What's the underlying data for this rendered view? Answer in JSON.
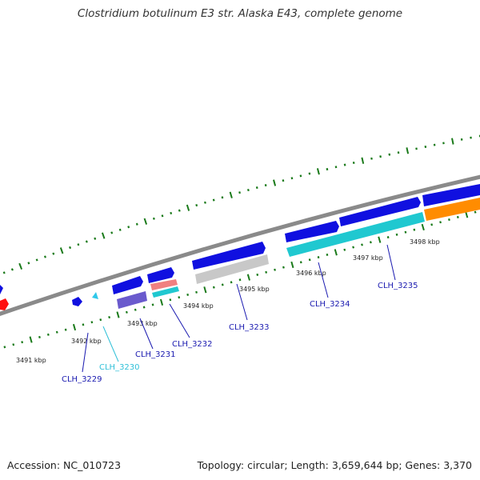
{
  "title": "Clostridium botulinum E3 str. Alaska E43, complete genome",
  "footer": {
    "accession": "Accession: NC_010723",
    "stats": "Topology: circular; Length: 3,659,644 bp; Genes: 3,370"
  },
  "colors": {
    "forward_cds": "#1010e0",
    "reverse_cds_cyan": "#20c8d0",
    "cds_purple": "#6a5acd",
    "cds_grey": "#c0c0c0",
    "cds_orange": "#ff8c00",
    "cds_pink": "#f08080",
    "cds_red": "#ff0000",
    "label_dark_blue": "#1a1ab0",
    "label_cyan": "#30c0d8",
    "tick_green": "#1a7a1a",
    "backbone": "#888888"
  },
  "ticks": [
    {
      "label": "3491 kbp"
    },
    {
      "label": "3492 kbp"
    },
    {
      "label": "3493 kbp"
    },
    {
      "label": "3494 kbp"
    },
    {
      "label": "3495 kbp"
    },
    {
      "label": "3496 kbp"
    },
    {
      "label": "3497 kbp"
    },
    {
      "label": "3498 kbp"
    }
  ],
  "genes": [
    {
      "label": "CLH_3229",
      "color": "#1a1ab0"
    },
    {
      "label": "CLH_3230",
      "color": "#30c0d8"
    },
    {
      "label": "CLH_3231",
      "color": "#1a1ab0"
    },
    {
      "label": "CLH_3232",
      "color": "#1a1ab0"
    },
    {
      "label": "CLH_3233",
      "color": "#1a1ab0"
    },
    {
      "label": "CLH_3234",
      "color": "#1a1ab0"
    },
    {
      "label": "CLH_3235",
      "color": "#1a1ab0"
    }
  ]
}
